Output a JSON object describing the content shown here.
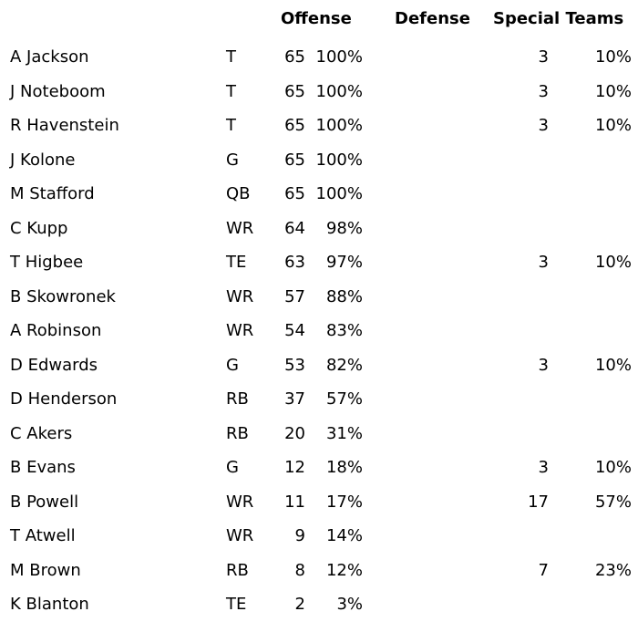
{
  "headers": {
    "offense": "Offense",
    "defense": "Defense",
    "special_teams": "Special Teams"
  },
  "rows": [
    {
      "name": "A Jackson",
      "pos": "T",
      "off_snaps": "65",
      "off_pct": "100%",
      "st_snaps": "3",
      "st_pct": "10%"
    },
    {
      "name": "J Noteboom",
      "pos": "T",
      "off_snaps": "65",
      "off_pct": "100%",
      "st_snaps": "3",
      "st_pct": "10%"
    },
    {
      "name": "R Havenstein",
      "pos": "T",
      "off_snaps": "65",
      "off_pct": "100%",
      "st_snaps": "3",
      "st_pct": "10%"
    },
    {
      "name": "J Kolone",
      "pos": "G",
      "off_snaps": "65",
      "off_pct": "100%",
      "st_snaps": "",
      "st_pct": ""
    },
    {
      "name": "M Stafford",
      "pos": "QB",
      "off_snaps": "65",
      "off_pct": "100%",
      "st_snaps": "",
      "st_pct": ""
    },
    {
      "name": "C Kupp",
      "pos": "WR",
      "off_snaps": "64",
      "off_pct": "98%",
      "st_snaps": "",
      "st_pct": ""
    },
    {
      "name": "T Higbee",
      "pos": "TE",
      "off_snaps": "63",
      "off_pct": "97%",
      "st_snaps": "3",
      "st_pct": "10%"
    },
    {
      "name": "B Skowronek",
      "pos": "WR",
      "off_snaps": "57",
      "off_pct": "88%",
      "st_snaps": "",
      "st_pct": ""
    },
    {
      "name": "A Robinson",
      "pos": "WR",
      "off_snaps": "54",
      "off_pct": "83%",
      "st_snaps": "",
      "st_pct": ""
    },
    {
      "name": "D Edwards",
      "pos": "G",
      "off_snaps": "53",
      "off_pct": "82%",
      "st_snaps": "3",
      "st_pct": "10%"
    },
    {
      "name": "D Henderson",
      "pos": "RB",
      "off_snaps": "37",
      "off_pct": "57%",
      "st_snaps": "",
      "st_pct": ""
    },
    {
      "name": "C Akers",
      "pos": "RB",
      "off_snaps": "20",
      "off_pct": "31%",
      "st_snaps": "",
      "st_pct": ""
    },
    {
      "name": "B Evans",
      "pos": "G",
      "off_snaps": "12",
      "off_pct": "18%",
      "st_snaps": "3",
      "st_pct": "10%"
    },
    {
      "name": "B Powell",
      "pos": "WR",
      "off_snaps": "11",
      "off_pct": "17%",
      "st_snaps": "17",
      "st_pct": "57%"
    },
    {
      "name": "T Atwell",
      "pos": "WR",
      "off_snaps": "9",
      "off_pct": "14%",
      "st_snaps": "",
      "st_pct": ""
    },
    {
      "name": "M Brown",
      "pos": "RB",
      "off_snaps": "8",
      "off_pct": "12%",
      "st_snaps": "7",
      "st_pct": "23%"
    },
    {
      "name": "K Blanton",
      "pos": "TE",
      "off_snaps": "2",
      "off_pct": "3%",
      "st_snaps": "",
      "st_pct": ""
    }
  ]
}
